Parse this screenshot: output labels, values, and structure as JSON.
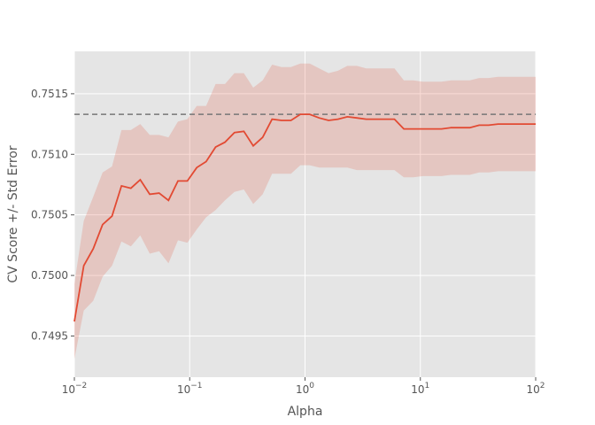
{
  "chart_data": {
    "type": "line",
    "title": "",
    "xlabel": "Alpha",
    "ylabel": "CV Score +/- Std Error",
    "xscale": "log",
    "xlim": [
      0.01,
      100
    ],
    "ylim": [
      0.74916,
      0.75185
    ],
    "grid": true,
    "legend": "none",
    "x_ticks": [
      {
        "value": 0.01,
        "base": "10",
        "exp": "−2"
      },
      {
        "value": 0.1,
        "base": "10",
        "exp": "−1"
      },
      {
        "value": 1,
        "base": "10",
        "exp": "0"
      },
      {
        "value": 10,
        "base": "10",
        "exp": "1"
      },
      {
        "value": 100,
        "base": "10",
        "exp": "2"
      }
    ],
    "y_ticks": [
      {
        "value": 0.7495,
        "label": "0.7495"
      },
      {
        "value": 0.75,
        "label": "0.7500"
      },
      {
        "value": 0.7505,
        "label": "0.7505"
      },
      {
        "value": 0.751,
        "label": "0.7510"
      },
      {
        "value": 0.7515,
        "label": "0.7515"
      }
    ],
    "reference_line": {
      "y": 0.75133,
      "color": "#777777",
      "style": "dashed"
    },
    "colors": {
      "line": "#E24A33",
      "band": "#E24A33",
      "background": "#E5E5E5",
      "grid": "#FFFFFF"
    },
    "series": [
      {
        "x": [
          0.01,
          0.01207,
          0.01456,
          0.01758,
          0.02121,
          0.0256,
          0.0309,
          0.03728,
          0.04498,
          0.05429,
          0.06551,
          0.07906,
          0.09541,
          0.1151,
          0.1389,
          0.1677,
          0.2024,
          0.2442,
          0.2947,
          0.3556,
          0.4292,
          0.5179,
          0.625,
          0.7543,
          0.9103,
          1.099,
          1.326,
          1.6,
          1.931,
          2.33,
          2.812,
          3.393,
          4.095,
          4.942,
          5.964,
          7.197,
          8.685,
          10.48,
          12.65,
          15.26,
          18.42,
          22.23,
          26.83,
          32.37,
          39.07,
          47.15,
          56.9,
          68.66,
          82.86,
          100.0
        ],
        "values": [
          0.74962,
          0.75008,
          0.75022,
          0.75042,
          0.75049,
          0.75074,
          0.75072,
          0.75079,
          0.75067,
          0.75068,
          0.75062,
          0.75078,
          0.75078,
          0.75089,
          0.75094,
          0.75106,
          0.7511,
          0.75118,
          0.75119,
          0.75107,
          0.75114,
          0.75129,
          0.75128,
          0.75128,
          0.75133,
          0.75133,
          0.7513,
          0.75128,
          0.75129,
          0.75131,
          0.7513,
          0.75129,
          0.75129,
          0.75129,
          0.75129,
          0.75121,
          0.75121,
          0.75121,
          0.75121,
          0.75121,
          0.75122,
          0.75122,
          0.75122,
          0.75124,
          0.75124,
          0.75125,
          0.75125,
          0.75125,
          0.75125,
          0.75125
        ],
        "upper": [
          0.74993,
          0.75045,
          0.75065,
          0.75085,
          0.7509,
          0.7512,
          0.7512,
          0.75125,
          0.75116,
          0.75116,
          0.75114,
          0.75127,
          0.75129,
          0.7514,
          0.7514,
          0.75158,
          0.75158,
          0.75167,
          0.75167,
          0.75155,
          0.75161,
          0.75174,
          0.75172,
          0.75172,
          0.75175,
          0.75175,
          0.75171,
          0.75167,
          0.75169,
          0.75173,
          0.75173,
          0.75171,
          0.75171,
          0.75171,
          0.75171,
          0.75161,
          0.75161,
          0.7516,
          0.7516,
          0.7516,
          0.75161,
          0.75161,
          0.75161,
          0.75163,
          0.75163,
          0.75164,
          0.75164,
          0.75164,
          0.75164,
          0.75164
        ],
        "lower": [
          0.74931,
          0.74971,
          0.74979,
          0.74999,
          0.75008,
          0.75028,
          0.75024,
          0.75033,
          0.75018,
          0.7502,
          0.7501,
          0.75029,
          0.75027,
          0.75038,
          0.75048,
          0.75054,
          0.75062,
          0.75069,
          0.75071,
          0.75059,
          0.75067,
          0.75084,
          0.75084,
          0.75084,
          0.75091,
          0.75091,
          0.75089,
          0.75089,
          0.75089,
          0.75089,
          0.75087,
          0.75087,
          0.75087,
          0.75087,
          0.75087,
          0.75081,
          0.75081,
          0.75082,
          0.75082,
          0.75082,
          0.75083,
          0.75083,
          0.75083,
          0.75085,
          0.75085,
          0.75086,
          0.75086,
          0.75086,
          0.75086,
          0.75086
        ]
      }
    ]
  }
}
